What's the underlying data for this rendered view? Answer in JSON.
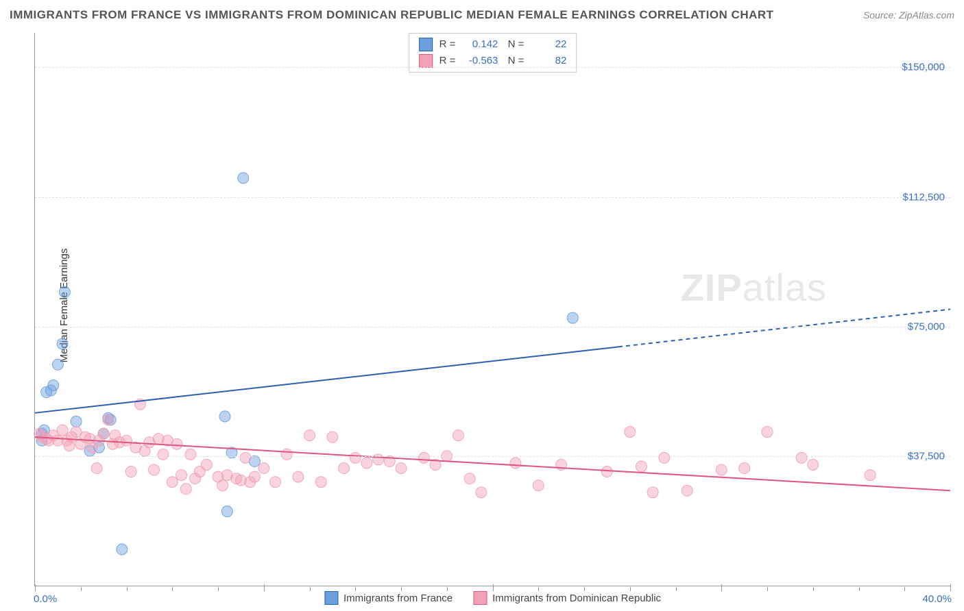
{
  "title": "IMMIGRANTS FROM FRANCE VS IMMIGRANTS FROM DOMINICAN REPUBLIC MEDIAN FEMALE EARNINGS CORRELATION CHART",
  "source_label": "Source: ZipAtlas.com",
  "watermark": {
    "strong": "ZIP",
    "rest": "atlas"
  },
  "chart": {
    "type": "scatter",
    "ylabel": "Median Female Earnings",
    "xlim": [
      0,
      40
    ],
    "ylim": [
      0,
      160000
    ],
    "x_axis_start_label": "0.0%",
    "x_axis_end_label": "40.0%",
    "yticks": [
      {
        "value": 37500,
        "label": "$37,500"
      },
      {
        "value": 75000,
        "label": "$75,000"
      },
      {
        "value": 112500,
        "label": "$112,500"
      },
      {
        "value": 150000,
        "label": "$150,000"
      }
    ],
    "xticks_minor": [
      0,
      2,
      4,
      6,
      8,
      10,
      12,
      14,
      16,
      18,
      20,
      22,
      24,
      26,
      28,
      30,
      32,
      34,
      36,
      38,
      40
    ],
    "xticks_major": [
      0,
      10,
      20,
      30,
      40
    ],
    "marker_radius": 8,
    "marker_fill_opacity": 0.45,
    "marker_stroke_opacity": 0.9,
    "background_color": "#ffffff",
    "grid_color": "#e0e0e0",
    "axis_color": "#999999",
    "ytick_label_color": "#3b6fc4",
    "series": [
      {
        "name": "Immigrants from France",
        "color": "#6b9fe0",
        "line_color": "#2c5fb0",
        "R": "0.142",
        "N": "22",
        "trend": {
          "x1": 0,
          "y1": 50000,
          "x2": 40,
          "y2": 80000,
          "dash_start_x": 25.5
        },
        "points": [
          [
            0.3,
            42000
          ],
          [
            0.3,
            44000
          ],
          [
            0.4,
            45000
          ],
          [
            0.5,
            56000
          ],
          [
            0.7,
            56500
          ],
          [
            0.8,
            58000
          ],
          [
            1.0,
            64000
          ],
          [
            1.2,
            70000
          ],
          [
            1.3,
            85000
          ],
          [
            1.8,
            47500
          ],
          [
            2.4,
            39000
          ],
          [
            2.8,
            40000
          ],
          [
            3.0,
            44000
          ],
          [
            3.2,
            48500
          ],
          [
            3.3,
            48000
          ],
          [
            3.8,
            10500
          ],
          [
            8.3,
            49000
          ],
          [
            8.4,
            21500
          ],
          [
            8.6,
            38500
          ],
          [
            9.1,
            118000
          ],
          [
            9.6,
            36000
          ],
          [
            23.5,
            77500
          ]
        ]
      },
      {
        "name": "Immigrants from Dominican Republic",
        "color": "#f1a0b5",
        "line_color": "#e05580",
        "R": "-0.563",
        "N": "82",
        "trend": {
          "x1": 0,
          "y1": 43000,
          "x2": 40,
          "y2": 27500
        },
        "points": [
          [
            0.2,
            44000
          ],
          [
            0.3,
            43000
          ],
          [
            0.5,
            42500
          ],
          [
            0.6,
            42000
          ],
          [
            0.8,
            43500
          ],
          [
            1.0,
            42000
          ],
          [
            1.2,
            45000
          ],
          [
            1.4,
            42000
          ],
          [
            1.5,
            40500
          ],
          [
            1.6,
            43000
          ],
          [
            1.8,
            44500
          ],
          [
            2.0,
            41000
          ],
          [
            2.2,
            43000
          ],
          [
            2.4,
            42500
          ],
          [
            2.5,
            40000
          ],
          [
            2.7,
            34000
          ],
          [
            2.8,
            42000
          ],
          [
            3.0,
            44000
          ],
          [
            3.2,
            48000
          ],
          [
            3.4,
            41000
          ],
          [
            3.5,
            43500
          ],
          [
            3.7,
            41500
          ],
          [
            4.0,
            42000
          ],
          [
            4.2,
            33000
          ],
          [
            4.4,
            40000
          ],
          [
            4.6,
            52500
          ],
          [
            4.8,
            39000
          ],
          [
            5.0,
            41500
          ],
          [
            5.2,
            33500
          ],
          [
            5.4,
            42500
          ],
          [
            5.6,
            38000
          ],
          [
            5.8,
            42000
          ],
          [
            6.0,
            30000
          ],
          [
            6.2,
            41000
          ],
          [
            6.4,
            32000
          ],
          [
            6.6,
            28000
          ],
          [
            6.8,
            38000
          ],
          [
            7.0,
            31000
          ],
          [
            7.2,
            33000
          ],
          [
            7.5,
            35000
          ],
          [
            8.0,
            31500
          ],
          [
            8.2,
            29000
          ],
          [
            8.4,
            32000
          ],
          [
            8.8,
            31000
          ],
          [
            9.0,
            30500
          ],
          [
            9.2,
            37000
          ],
          [
            9.4,
            30000
          ],
          [
            9.6,
            31500
          ],
          [
            10.0,
            34000
          ],
          [
            10.5,
            30000
          ],
          [
            11.0,
            38000
          ],
          [
            11.5,
            31500
          ],
          [
            12.0,
            43500
          ],
          [
            12.5,
            30000
          ],
          [
            13.0,
            43000
          ],
          [
            13.5,
            34000
          ],
          [
            14.0,
            37000
          ],
          [
            14.5,
            35500
          ],
          [
            15.0,
            36500
          ],
          [
            15.5,
            36000
          ],
          [
            16.0,
            34000
          ],
          [
            17.0,
            37000
          ],
          [
            17.5,
            35000
          ],
          [
            18.0,
            37500
          ],
          [
            18.5,
            43500
          ],
          [
            19.0,
            31000
          ],
          [
            19.5,
            27000
          ],
          [
            21.0,
            35500
          ],
          [
            22.0,
            29000
          ],
          [
            23.0,
            35000
          ],
          [
            25.0,
            33000
          ],
          [
            26.0,
            44500
          ],
          [
            26.5,
            34500
          ],
          [
            27.0,
            27000
          ],
          [
            27.5,
            37000
          ],
          [
            28.5,
            27500
          ],
          [
            30.0,
            33500
          ],
          [
            31.0,
            34000
          ],
          [
            32.0,
            44500
          ],
          [
            33.5,
            37000
          ],
          [
            34.0,
            35000
          ],
          [
            36.5,
            32000
          ]
        ]
      }
    ],
    "bottom_legend": [
      {
        "label": "Immigrants from France",
        "color": "#6b9fe0"
      },
      {
        "label": "Immigrants from Dominican Republic",
        "color": "#f1a0b5"
      }
    ]
  }
}
